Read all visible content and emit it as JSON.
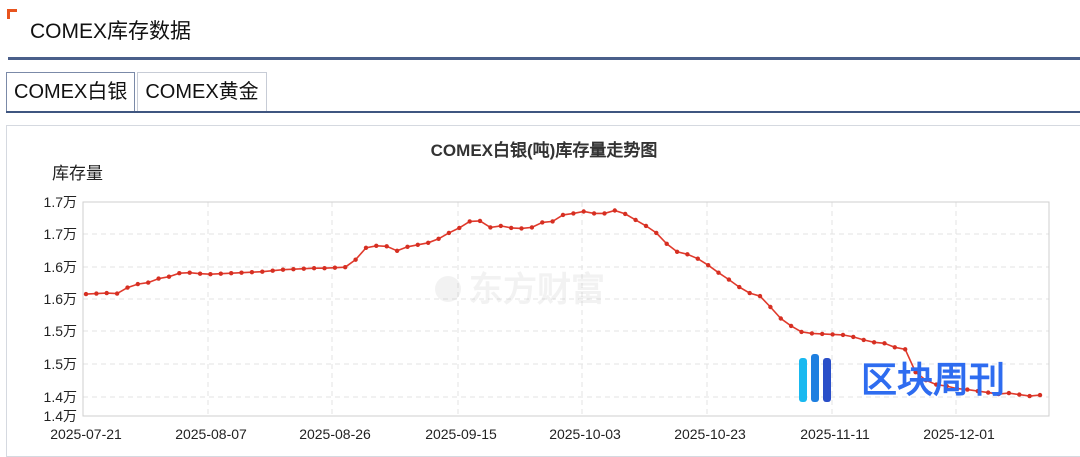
{
  "header": {
    "title": "COMEX库存数据"
  },
  "tabs": [
    {
      "label": "COMEX白银",
      "active": true
    },
    {
      "label": "COMEX黄金",
      "active": false
    }
  ],
  "colors": {
    "accent": "#e8541e",
    "line": "#e03a2c",
    "rule": "#4a5f8a",
    "grid": "#e3e3e3"
  },
  "watermarks": {
    "brand": "东方财富",
    "weekly": "区块周刊"
  },
  "chart_data": {
    "type": "line",
    "title": "COMEX白银(吨)库存量走势图",
    "ylabel": "库存量",
    "xlabel": "",
    "y_tick_labels": [
      "1.4万",
      "1.4万",
      "1.5万",
      "1.5万",
      "1.6万",
      "1.6万",
      "1.7万",
      "1.7万"
    ],
    "x_tick_labels": [
      "2025-07-21",
      "2025-08-07",
      "2025-08-26",
      "2025-09-15",
      "2025-10-03",
      "2025-10-23",
      "2025-11-11",
      "2025-12-01"
    ],
    "grid": true,
    "legend": "none",
    "series": [
      {
        "values": [
          15975,
          15980,
          15985,
          15980,
          16040,
          16075,
          16090,
          16130,
          16150,
          16185,
          16190,
          16180,
          16175,
          16180,
          16185,
          16190,
          16195,
          16200,
          16210,
          16220,
          16225,
          16230,
          16235,
          16235,
          16240,
          16245,
          16320,
          16440,
          16460,
          16455,
          16410,
          16450,
          16470,
          16490,
          16530,
          16590,
          16640,
          16705,
          16710,
          16645,
          16660,
          16640,
          16635,
          16645,
          16695,
          16705,
          16770,
          16785,
          16805,
          16785,
          16785,
          16815,
          16780,
          16720,
          16660,
          16590,
          16480,
          16400,
          16375,
          16330,
          16265,
          16190,
          16120,
          16045,
          15985,
          15955,
          15845,
          15730,
          15655,
          15595,
          15580,
          15575,
          15570,
          15565,
          15545,
          15515,
          15490,
          15480,
          15440,
          15420,
          15190,
          15110,
          15065,
          15050,
          15025,
          15015,
          15000,
          14985,
          14970,
          14980,
          14965,
          14950,
          14960
        ]
      }
    ]
  }
}
